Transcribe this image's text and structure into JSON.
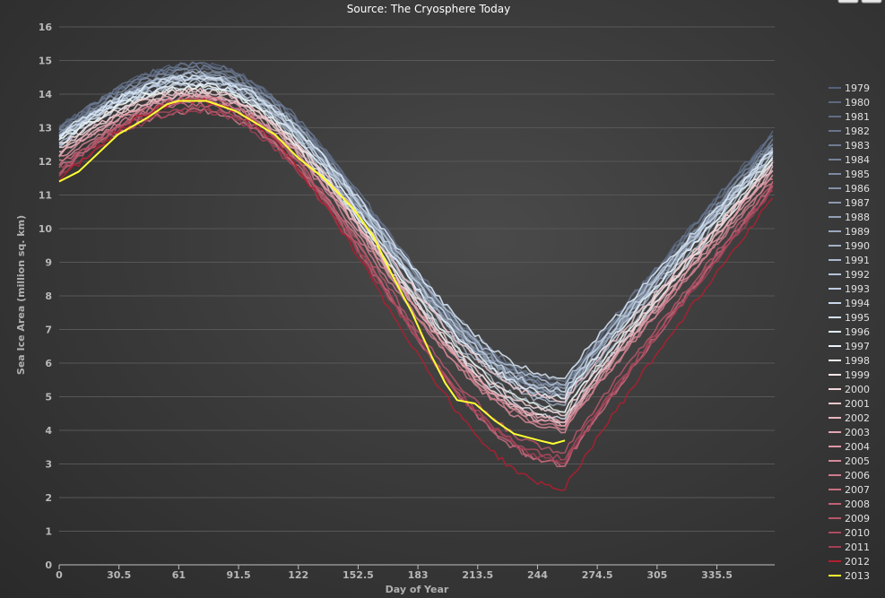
{
  "chart_data": {
    "type": "line",
    "title": "",
    "subtitle": "Source: The Cryosphere Today",
    "xlabel": "Day of Year",
    "ylabel": "Sea Ice Area (million sq. km)",
    "xlim": [
      0,
      365
    ],
    "ylim": [
      0,
      16
    ],
    "x_ticks": [
      "0",
      "30.5",
      "61",
      "91.5",
      "122",
      "152.5",
      "183",
      "213.5",
      "244",
      "274.5",
      "305",
      "335.5"
    ],
    "y_ticks": [
      "0",
      "1",
      "2",
      "3",
      "4",
      "5",
      "6",
      "7",
      "8",
      "9",
      "10",
      "11",
      "12",
      "13",
      "14",
      "15",
      "16"
    ],
    "grid": "horizontal",
    "legend_position": "right",
    "series": [
      {
        "name": "1979",
        "color": "#56627a",
        "values": [
          [
            0,
            12.9
          ],
          [
            70,
            14.9
          ],
          [
            258,
            5.3
          ],
          [
            365,
            12.9
          ]
        ]
      },
      {
        "name": "1980",
        "color": "#5c6880",
        "values": [
          [
            0,
            13.0
          ],
          [
            70,
            14.8
          ],
          [
            258,
            5.4
          ],
          [
            365,
            12.9
          ]
        ]
      },
      {
        "name": "1981",
        "color": "#626e86",
        "values": [
          [
            0,
            12.7
          ],
          [
            70,
            14.6
          ],
          [
            258,
            5.1
          ],
          [
            365,
            12.7
          ]
        ]
      },
      {
        "name": "1982",
        "color": "#68758c",
        "values": [
          [
            0,
            12.9
          ],
          [
            70,
            14.9
          ],
          [
            258,
            5.5
          ],
          [
            365,
            12.8
          ]
        ]
      },
      {
        "name": "1983",
        "color": "#6f7c92",
        "values": [
          [
            0,
            13.0
          ],
          [
            70,
            14.8
          ],
          [
            258,
            5.3
          ],
          [
            365,
            12.7
          ]
        ]
      },
      {
        "name": "1984",
        "color": "#768398",
        "values": [
          [
            0,
            12.8
          ],
          [
            70,
            14.6
          ],
          [
            258,
            5.0
          ],
          [
            365,
            12.6
          ]
        ]
      },
      {
        "name": "1985",
        "color": "#7d8a9f",
        "values": [
          [
            0,
            12.6
          ],
          [
            70,
            14.5
          ],
          [
            258,
            5.1
          ],
          [
            365,
            12.5
          ]
        ]
      },
      {
        "name": "1986",
        "color": "#8491a6",
        "values": [
          [
            0,
            12.9
          ],
          [
            70,
            14.7
          ],
          [
            258,
            5.3
          ],
          [
            365,
            12.6
          ]
        ]
      },
      {
        "name": "1987",
        "color": "#8b99ad",
        "values": [
          [
            0,
            12.8
          ],
          [
            70,
            14.6
          ],
          [
            258,
            5.2
          ],
          [
            365,
            12.5
          ]
        ]
      },
      {
        "name": "1988",
        "color": "#93a1b5",
        "values": [
          [
            0,
            12.7
          ],
          [
            70,
            14.5
          ],
          [
            258,
            5.1
          ],
          [
            365,
            12.4
          ]
        ]
      },
      {
        "name": "1989",
        "color": "#9aa9bd",
        "values": [
          [
            0,
            12.8
          ],
          [
            70,
            14.4
          ],
          [
            258,
            5.0
          ],
          [
            365,
            12.4
          ]
        ]
      },
      {
        "name": "1990",
        "color": "#a2b1c5",
        "values": [
          [
            0,
            12.6
          ],
          [
            70,
            14.3
          ],
          [
            258,
            4.8
          ],
          [
            365,
            12.3
          ]
        ]
      },
      {
        "name": "1991",
        "color": "#abbacd",
        "values": [
          [
            0,
            12.5
          ],
          [
            70,
            14.3
          ],
          [
            258,
            4.6
          ],
          [
            365,
            12.2
          ]
        ]
      },
      {
        "name": "1992",
        "color": "#b4c3d6",
        "values": [
          [
            0,
            12.7
          ],
          [
            70,
            14.6
          ],
          [
            258,
            5.4
          ],
          [
            365,
            12.4
          ]
        ]
      },
      {
        "name": "1993",
        "color": "#bdcce0",
        "values": [
          [
            0,
            12.6
          ],
          [
            70,
            14.4
          ],
          [
            258,
            4.9
          ],
          [
            365,
            12.3
          ]
        ]
      },
      {
        "name": "1994",
        "color": "#c8d7e9",
        "values": [
          [
            0,
            12.7
          ],
          [
            70,
            14.5
          ],
          [
            258,
            5.2
          ],
          [
            365,
            12.4
          ]
        ]
      },
      {
        "name": "1995",
        "color": "#d3e1f1",
        "values": [
          [
            0,
            12.5
          ],
          [
            70,
            14.2
          ],
          [
            258,
            4.4
          ],
          [
            365,
            12.0
          ]
        ]
      },
      {
        "name": "1996",
        "color": "#deebf8",
        "values": [
          [
            0,
            12.8
          ],
          [
            70,
            14.5
          ],
          [
            258,
            5.6
          ],
          [
            365,
            12.4
          ]
        ]
      },
      {
        "name": "1997",
        "color": "#e9f3fc",
        "values": [
          [
            0,
            12.7
          ],
          [
            70,
            14.3
          ],
          [
            258,
            5.0
          ],
          [
            365,
            12.2
          ]
        ]
      },
      {
        "name": "1998",
        "color": "#eef7f0",
        "values": [
          [
            0,
            12.6
          ],
          [
            70,
            14.2
          ],
          [
            258,
            4.6
          ],
          [
            365,
            12.1
          ]
        ]
      },
      {
        "name": "1999",
        "color": "#f8e6e8",
        "values": [
          [
            0,
            12.5
          ],
          [
            70,
            14.1
          ],
          [
            258,
            4.3
          ],
          [
            365,
            12.0
          ]
        ]
      },
      {
        "name": "2000",
        "color": "#f4d6da",
        "values": [
          [
            0,
            12.4
          ],
          [
            70,
            14.0
          ],
          [
            258,
            4.5
          ],
          [
            365,
            12.0
          ]
        ]
      },
      {
        "name": "2001",
        "color": "#efc6cc",
        "values": [
          [
            0,
            12.3
          ],
          [
            70,
            14.1
          ],
          [
            258,
            4.9
          ],
          [
            365,
            11.9
          ]
        ]
      },
      {
        "name": "2002",
        "color": "#e9b6be",
        "values": [
          [
            0,
            12.2
          ],
          [
            70,
            14.0
          ],
          [
            258,
            4.2
          ],
          [
            365,
            11.8
          ]
        ]
      },
      {
        "name": "2003",
        "color": "#e3a7b1",
        "values": [
          [
            0,
            12.2
          ],
          [
            70,
            13.9
          ],
          [
            258,
            4.3
          ],
          [
            365,
            11.8
          ]
        ]
      },
      {
        "name": "2004",
        "color": "#dd98a4",
        "values": [
          [
            0,
            12.1
          ],
          [
            70,
            13.9
          ],
          [
            258,
            4.2
          ],
          [
            365,
            11.7
          ]
        ]
      },
      {
        "name": "2005",
        "color": "#d68a98",
        "values": [
          [
            0,
            12.0
          ],
          [
            70,
            13.8
          ],
          [
            258,
            4.0
          ],
          [
            365,
            11.6
          ]
        ]
      },
      {
        "name": "2006",
        "color": "#cf7c8c",
        "values": [
          [
            0,
            11.8
          ],
          [
            70,
            13.5
          ],
          [
            258,
            4.1
          ],
          [
            365,
            11.5
          ]
        ]
      },
      {
        "name": "2007",
        "color": "#c86f80",
        "values": [
          [
            0,
            11.9
          ],
          [
            70,
            13.7
          ],
          [
            258,
            3.0
          ],
          [
            365,
            11.4
          ]
        ]
      },
      {
        "name": "2008",
        "color": "#c06275",
        "values": [
          [
            0,
            11.6
          ],
          [
            70,
            13.9
          ],
          [
            258,
            3.0
          ],
          [
            365,
            11.3
          ]
        ]
      },
      {
        "name": "2009",
        "color": "#b8566a",
        "values": [
          [
            0,
            11.7
          ],
          [
            70,
            13.8
          ],
          [
            258,
            3.4
          ],
          [
            365,
            11.4
          ]
        ]
      },
      {
        "name": "2010",
        "color": "#af4a5f",
        "values": [
          [
            0,
            11.8
          ],
          [
            70,
            13.6
          ],
          [
            258,
            3.2
          ],
          [
            365,
            11.3
          ]
        ]
      },
      {
        "name": "2011",
        "color": "#a53e55",
        "values": [
          [
            0,
            11.5
          ],
          [
            70,
            13.5
          ],
          [
            258,
            3.1
          ],
          [
            365,
            11.2
          ]
        ]
      },
      {
        "name": "2012",
        "color": "#b01e30",
        "values": [
          [
            0,
            11.4
          ],
          [
            70,
            13.8
          ],
          [
            258,
            2.3
          ],
          [
            365,
            11.0
          ]
        ]
      },
      {
        "name": "2013",
        "color": "#ffff33",
        "values": [
          [
            0,
            11.4
          ],
          [
            10,
            11.7
          ],
          [
            30,
            12.8
          ],
          [
            45,
            13.3
          ],
          [
            55,
            13.7
          ],
          [
            61,
            13.8
          ],
          [
            75,
            13.8
          ],
          [
            90,
            13.5
          ],
          [
            110,
            12.8
          ],
          [
            122,
            12.1
          ],
          [
            135,
            11.5
          ],
          [
            150,
            10.6
          ],
          [
            160,
            9.8
          ],
          [
            170,
            8.6
          ],
          [
            180,
            7.5
          ],
          [
            190,
            6.2
          ],
          [
            197,
            5.4
          ],
          [
            203,
            4.9
          ],
          [
            212,
            4.8
          ],
          [
            222,
            4.3
          ],
          [
            232,
            3.9
          ],
          [
            245,
            3.7
          ],
          [
            252,
            3.6
          ],
          [
            258,
            3.7
          ]
        ]
      }
    ]
  }
}
